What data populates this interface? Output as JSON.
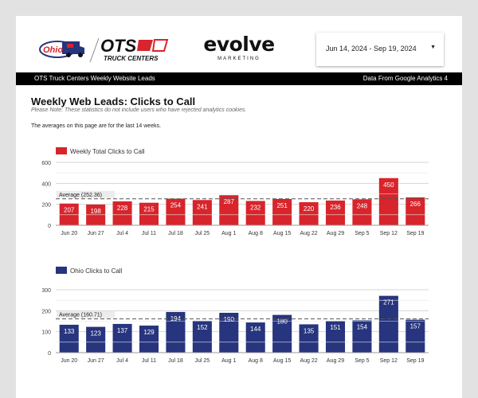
{
  "header": {
    "ohio_logo_alt": "Ohio Truck Centers logo",
    "ots_logo_text": "OTS",
    "ots_logo_sub": "TRUCK CENTERS",
    "evolve_word": "evolve",
    "evolve_sub": "MARKETING",
    "date_range": "Jun 14, 2024 - Sep 19, 2024"
  },
  "banner": {
    "left": "OTS Truck Centers Weekly Website Leads",
    "right": "Data From Google Analytics 4"
  },
  "main": {
    "title": "Weekly Web Leads: Clicks to Call",
    "note": "Please Note: These statistics do not include users who have rejected analytics cookies.",
    "avg_note": "The averages on this page are for the last 14 weeks."
  },
  "colors": {
    "red": "#d8242b",
    "navy": "#27347e",
    "banner": "#000000"
  },
  "icons": {
    "date_dropdown": "caret-down-icon"
  },
  "chart_data": [
    {
      "type": "bar",
      "categories": [
        "Jun 20",
        "Jun 27",
        "Jul 4",
        "Jul 11",
        "Jul 18",
        "Jul 25",
        "Aug 1",
        "Aug 8",
        "Aug 15",
        "Aug 22",
        "Aug 29",
        "Sep 5",
        "Sep 12",
        "Sep 19"
      ],
      "series": [
        {
          "name": "Weekly Total Clicks to Call",
          "values": [
            207,
            198,
            228,
            215,
            254,
            241,
            287,
            232,
            251,
            220,
            236,
            248,
            450,
            266
          ]
        }
      ],
      "reference_line": {
        "label": "Average (252.36)",
        "value": 252.36
      },
      "yticks": [
        0,
        200,
        400,
        600
      ],
      "ylim": [
        0,
        600
      ],
      "grid": true,
      "legend": "top-left",
      "color": "#d8242b"
    },
    {
      "type": "bar",
      "categories": [
        "Jun 20",
        "Jun 27",
        "Jul 4",
        "Jul 11",
        "Jul 18",
        "Jul 25",
        "Aug 1",
        "Aug 8",
        "Aug 15",
        "Aug 22",
        "Aug 29",
        "Sep 5",
        "Sep 12",
        "Sep 19"
      ],
      "series": [
        {
          "name": "Ohio Clicks to Call",
          "values": [
            133,
            123,
            137,
            129,
            194,
            152,
            190,
            144,
            180,
            135,
            151,
            154,
            271,
            157
          ]
        }
      ],
      "reference_line": {
        "label": "Average (160.71)",
        "value": 160.71
      },
      "yticks": [
        0,
        100,
        200,
        300
      ],
      "ylim": [
        0,
        300
      ],
      "grid": true,
      "legend": "top-left",
      "color": "#27347e"
    }
  ]
}
